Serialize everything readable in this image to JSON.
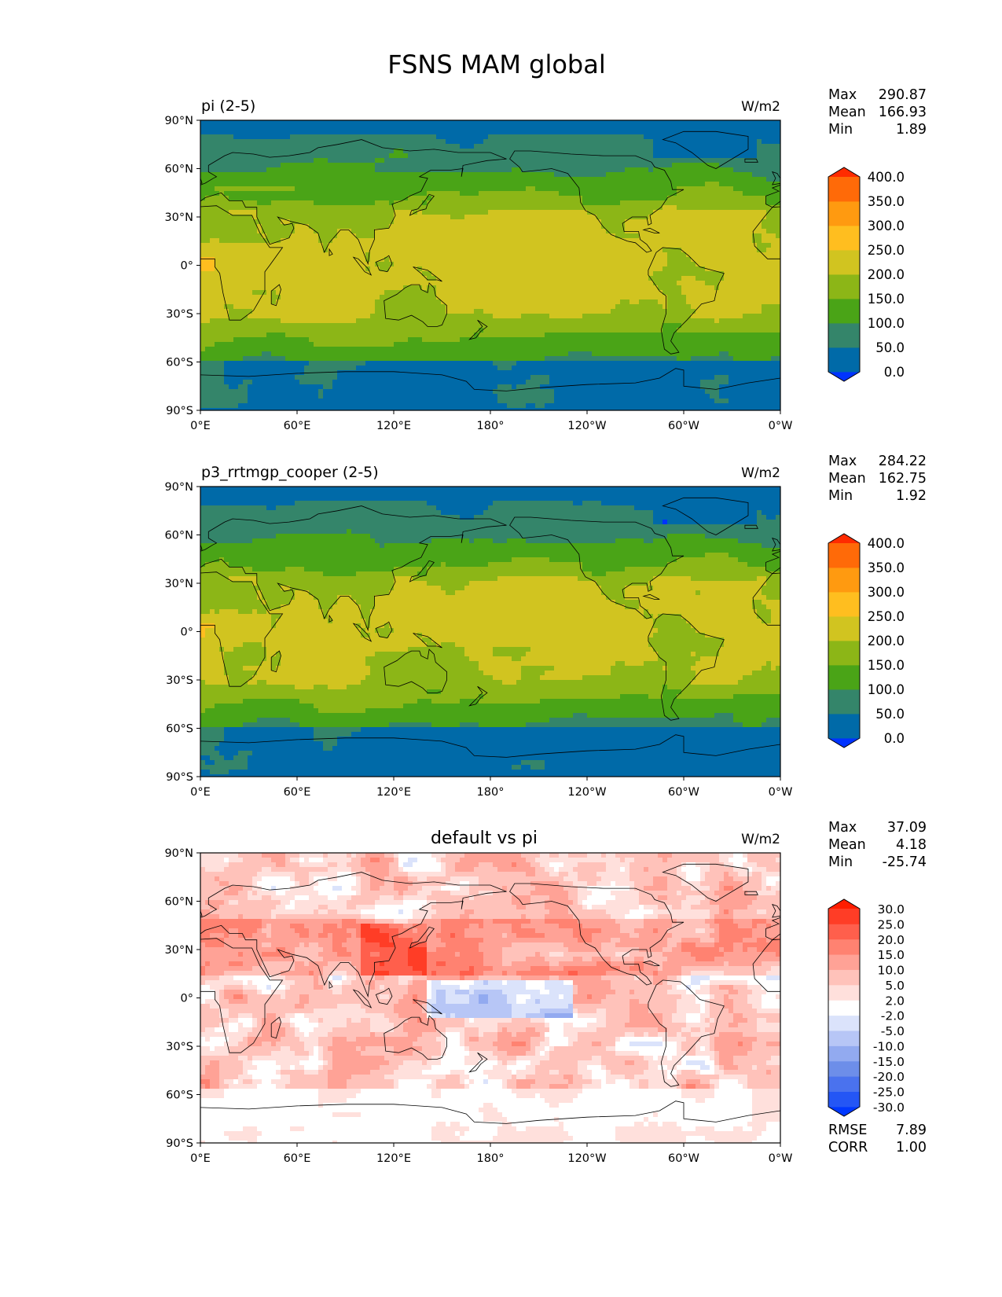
{
  "figure": {
    "title": "FSNS MAM global"
  },
  "axes": {
    "lat_ticks": [
      "90°N",
      "60°N",
      "30°N",
      "0°",
      "30°S",
      "60°S",
      "90°S"
    ],
    "lon_ticks": [
      "0°E",
      "60°E",
      "120°E",
      "180°",
      "120°W",
      "60°W",
      "0°W"
    ]
  },
  "panels": [
    {
      "title": "pi (2-5)",
      "units": "W/m2",
      "stats": {
        "max_label": "Max",
        "max": "290.87",
        "mean_label": "Mean",
        "mean": "166.93",
        "min_label": "Min",
        "min": "1.89"
      }
    },
    {
      "title": "p3_rrtmgp_cooper (2-5)",
      "units": "W/m2",
      "stats": {
        "max_label": "Max",
        "max": "284.22",
        "mean_label": "Mean",
        "mean": "162.75",
        "min_label": "Min",
        "min": "1.92"
      }
    },
    {
      "title": "default vs pi",
      "units": "W/m2",
      "stats": {
        "max_label": "Max",
        "max": "37.09",
        "mean_label": "Mean",
        "mean": "4.18",
        "min_label": "Min",
        "min": "-25.74"
      },
      "extra_stats": {
        "rmse_label": "RMSE",
        "rmse": "7.89",
        "corr_label": "CORR",
        "corr": "1.00"
      }
    }
  ],
  "chart_data": [
    {
      "type": "heatmap",
      "title": "pi (2-5)",
      "units": "W/m2",
      "x_range": [
        0,
        360
      ],
      "y_range": [
        -90,
        90
      ],
      "colorbar": {
        "levels": [
          0,
          50,
          100,
          150,
          200,
          250,
          300,
          350,
          400
        ],
        "tick_labels": [
          "0.0",
          "50.0",
          "100.0",
          "150.0",
          "200.0",
          "250.0",
          "300.0",
          "350.0",
          "400.0"
        ],
        "colors": [
          "#0033ff",
          "#006aa8",
          "#34856a",
          "#4aa417",
          "#8cb617",
          "#d1c420",
          "#ffbe1f",
          "#ff9a10",
          "#ff6a08",
          "#ff2b00"
        ],
        "extend": "both"
      },
      "stats": {
        "max": 290.87,
        "mean": 166.93,
        "min": 1.89
      }
    },
    {
      "type": "heatmap",
      "title": "p3_rrtmgp_cooper (2-5)",
      "units": "W/m2",
      "x_range": [
        0,
        360
      ],
      "y_range": [
        -90,
        90
      ],
      "colorbar": {
        "levels": [
          0,
          50,
          100,
          150,
          200,
          250,
          300,
          350,
          400
        ],
        "tick_labels": [
          "0.0",
          "50.0",
          "100.0",
          "150.0",
          "200.0",
          "250.0",
          "300.0",
          "350.0",
          "400.0"
        ],
        "colors": [
          "#0033ff",
          "#006aa8",
          "#34856a",
          "#4aa417",
          "#8cb617",
          "#d1c420",
          "#ffbe1f",
          "#ff9a10",
          "#ff6a08",
          "#ff2b00"
        ],
        "extend": "both"
      },
      "stats": {
        "max": 284.22,
        "mean": 162.75,
        "min": 1.92
      }
    },
    {
      "type": "heatmap",
      "title": "default vs pi",
      "units": "W/m2",
      "x_range": [
        0,
        360
      ],
      "y_range": [
        -90,
        90
      ],
      "colorbar": {
        "levels": [
          -30,
          -25,
          -20,
          -15,
          -10,
          -5,
          -2,
          2,
          5,
          10,
          15,
          20,
          25,
          30
        ],
        "tick_labels": [
          "-30.0",
          "-25.0",
          "-20.0",
          "-15.0",
          "-10.0",
          "-5.0",
          "-2.0",
          "2.0",
          "5.0",
          "10.0",
          "15.0",
          "20.0",
          "25.0",
          "30.0"
        ],
        "colors": [
          "#0038ff",
          "#2456f5",
          "#4a72ee",
          "#6d8ee9",
          "#92aaf0",
          "#b7c6f6",
          "#dbe3fb",
          "#ffffff",
          "#ffe0dc",
          "#ffc2ba",
          "#ffa296",
          "#ff8271",
          "#ff5f4c",
          "#ff3d26",
          "#ff1d00"
        ],
        "extend": "both"
      },
      "stats": {
        "max": 37.09,
        "mean": 4.18,
        "min": -25.74,
        "rmse": 7.89,
        "corr": 1.0
      }
    }
  ]
}
